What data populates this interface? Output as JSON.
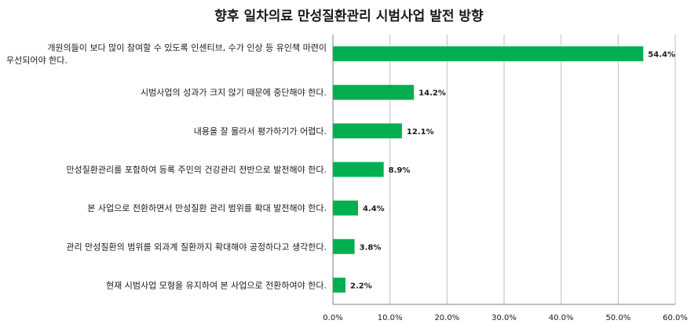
{
  "chart_data": {
    "type": "bar",
    "orientation": "horizontal",
    "title": "향후 일차의료 만성질환관리 시범사업 발전 방향",
    "categories": [
      [
        "개원의들이 보다 많이 참여할 수 있도록 인센티브, 수가 인상 등 유인책 마련이",
        "우선되어야 한다."
      ],
      [
        "시범사업의 성과가 크지 않기 때문에 중단해야 한다."
      ],
      [
        "내용을 잘 몰라서 평가하기가 어렵다."
      ],
      [
        "만성질환관리를 포함하여 등록 주민의 건강관리 전반으로 발전해야 한다."
      ],
      [
        "본 사업으로 전환하면서 만성질환 관리 범위를 확대 발전해야 한다."
      ],
      [
        "관리 만성질환의 범위를 외과계 질환까지 확대해야 공정하다고 생각한다."
      ],
      [
        "현재 시범사업 모형을 유지하여 본 사업으로 전환하여야 한다."
      ]
    ],
    "values": [
      54.4,
      14.2,
      12.1,
      8.9,
      4.4,
      3.8,
      2.2
    ],
    "value_labels": [
      "54.4%",
      "14.2%",
      "12.1%",
      "8.9%",
      "4.4%",
      "3.8%",
      "2.2%"
    ],
    "xlim": [
      0,
      60
    ],
    "xticks": [
      "0.0%",
      "10.0%",
      "20.0%",
      "30.0%",
      "40.0%",
      "50.0%",
      "60.0%"
    ],
    "grid": "vertical",
    "bar_color": "#00b050",
    "grid_color": "#bfbfbf"
  }
}
